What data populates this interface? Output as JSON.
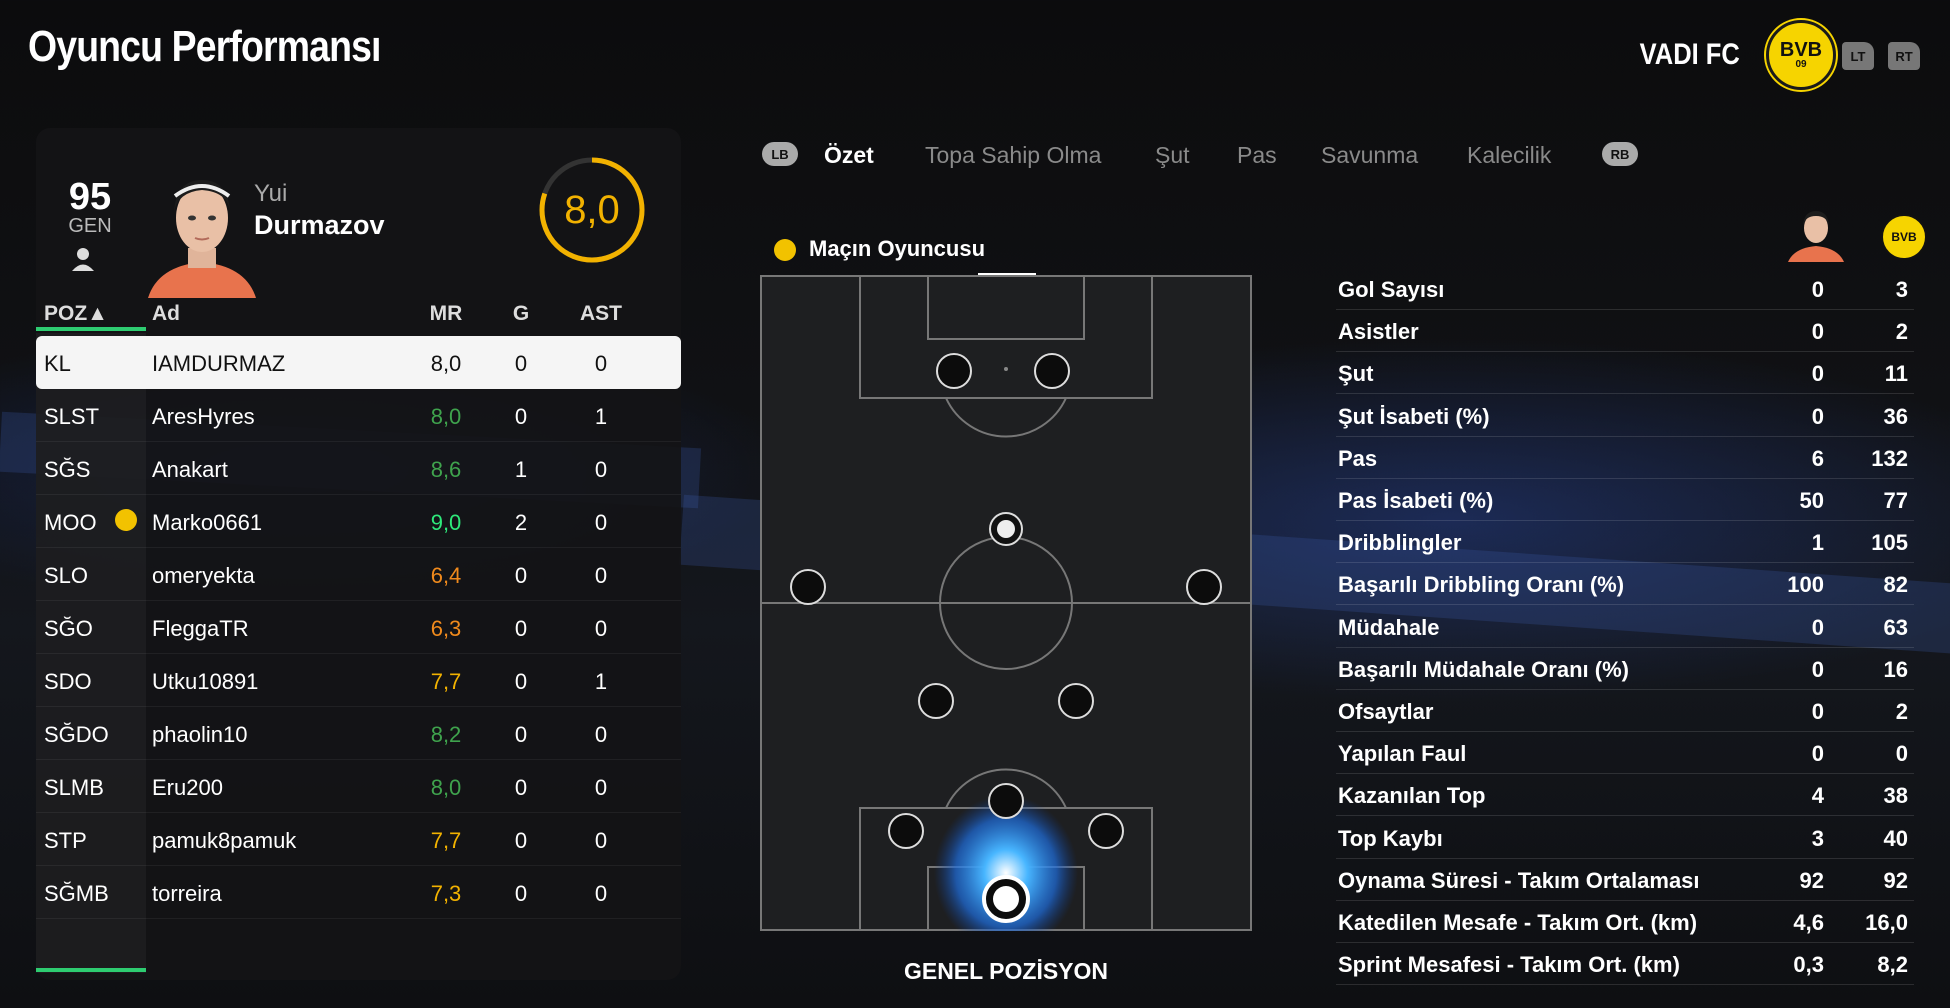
{
  "header": {
    "title": "Oyuncu Performansı",
    "club": "VADI FC",
    "crest_top": "BVB",
    "crest_bottom": "09",
    "lt": "LT",
    "rt": "RT"
  },
  "player": {
    "overall": "95",
    "overall_label": "GEN",
    "first_name": "Yui",
    "last_name": "Durmazov",
    "match_rating": "8,0"
  },
  "table": {
    "headers": {
      "pos": "POZ▲",
      "name": "Ad",
      "mr": "MR",
      "g": "G",
      "ast": "AST"
    },
    "rows": [
      {
        "pos": "KL",
        "name": "IAMDURMAZ",
        "mr": "8,0",
        "g": "0",
        "ast": "0",
        "mr_color": "#111111",
        "selected": true
      },
      {
        "pos": "SLST",
        "name": "AresHyres",
        "mr": "8,0",
        "g": "0",
        "ast": "1",
        "mr_color": "#3fa34d"
      },
      {
        "pos": "SĞS",
        "name": "Anakart",
        "mr": "8,6",
        "g": "1",
        "ast": "0",
        "mr_color": "#3fa34d"
      },
      {
        "pos": "MOO",
        "name": "Marko0661",
        "mr": "9,0",
        "g": "2",
        "ast": "0",
        "mr_color": "#2ee87a",
        "motm": true
      },
      {
        "pos": "SLO",
        "name": "omeryekta",
        "mr": "6,4",
        "g": "0",
        "ast": "0",
        "mr_color": "#f08a1c"
      },
      {
        "pos": "SĞO",
        "name": "FleggaTR",
        "mr": "6,3",
        "g": "0",
        "ast": "0",
        "mr_color": "#f08a1c"
      },
      {
        "pos": "SDO",
        "name": "Utku10891",
        "mr": "7,7",
        "g": "0",
        "ast": "1",
        "mr_color": "#f2b200"
      },
      {
        "pos": "SĞDO",
        "name": "phaolin10",
        "mr": "8,2",
        "g": "0",
        "ast": "0",
        "mr_color": "#3fa34d"
      },
      {
        "pos": "SLMB",
        "name": "Eru200",
        "mr": "8,0",
        "g": "0",
        "ast": "0",
        "mr_color": "#3fa34d"
      },
      {
        "pos": "STP",
        "name": "pamuk8pamuk",
        "mr": "7,7",
        "g": "0",
        "ast": "0",
        "mr_color": "#f2b200"
      },
      {
        "pos": "SĞMB",
        "name": "torreira",
        "mr": "7,3",
        "g": "0",
        "ast": "0",
        "mr_color": "#f2b200"
      }
    ]
  },
  "tabs": {
    "lb": "LB",
    "rb": "RB",
    "items": [
      "Özet",
      "Topa Sahip Olma",
      "Şut",
      "Pas",
      "Savunma",
      "Kalecilik"
    ],
    "active": 0
  },
  "motm_label": "Maçın Oyuncusu",
  "pitch_label": "GENEL POZİSYON",
  "stats": [
    {
      "label": "Gol Sayısı",
      "player": "0",
      "team": "3"
    },
    {
      "label": "Asistler",
      "player": "0",
      "team": "2"
    },
    {
      "label": "Şut",
      "player": "0",
      "team": "11"
    },
    {
      "label": "Şut İsabeti (%)",
      "player": "0",
      "team": "36"
    },
    {
      "label": "Pas",
      "player": "6",
      "team": "132"
    },
    {
      "label": "Pas İsabeti (%)",
      "player": "50",
      "team": "77"
    },
    {
      "label": "Dribblingler",
      "player": "1",
      "team": "105"
    },
    {
      "label": "Başarılı Dribbling Oranı (%)",
      "player": "100",
      "team": "82"
    },
    {
      "label": "Müdahale",
      "player": "0",
      "team": "63"
    },
    {
      "label": "Başarılı Müdahale Oranı (%)",
      "player": "0",
      "team": "16"
    },
    {
      "label": "Ofsaytlar",
      "player": "0",
      "team": "2"
    },
    {
      "label": "Yapılan Faul",
      "player": "0",
      "team": "0"
    },
    {
      "label": "Kazanılan Top",
      "player": "4",
      "team": "38"
    },
    {
      "label": "Top Kaybı",
      "player": "3",
      "team": "40"
    },
    {
      "label": "Oynama Süresi - Takım Ortalaması",
      "player": "92",
      "team": "92"
    },
    {
      "label": "Katedilen Mesafe - Takım Ort. (km)",
      "player": "4,6",
      "team": "16,0"
    },
    {
      "label": "Sprint Mesafesi - Takım Ort. (km)",
      "player": "0,3",
      "team": "8,2"
    }
  ]
}
